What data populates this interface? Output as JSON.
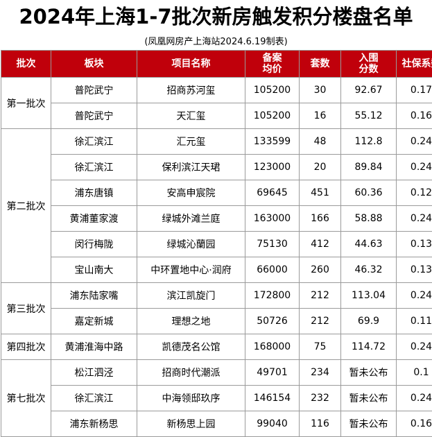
{
  "title": "2024年上海1-7批次新房触发积分楼盘名单",
  "subtitle": "(凤凰网房产上海站2024.6.19制表)",
  "colors": {
    "header_bg": "#c0000b",
    "header_text": "#ffffff",
    "border": "#9a9a9a"
  },
  "headers": {
    "batch": "批次",
    "area": "板块",
    "project": "项目名称",
    "price_line1": "备案",
    "price_line2": "均价",
    "units": "套数",
    "score_line1": "入围",
    "score_line2": "分数",
    "coef": "社保系数"
  },
  "batches": [
    {
      "name": "第一批次",
      "rows": [
        {
          "area": "普陀武宁",
          "project": "招商苏河玺",
          "price": "105200",
          "units": "30",
          "score": "92.67",
          "coef": "0.17"
        },
        {
          "area": "普陀武宁",
          "project": "天汇玺",
          "price": "105200",
          "units": "16",
          "score": "55.12",
          "coef": "0.16"
        }
      ]
    },
    {
      "name": "第二批次",
      "rows": [
        {
          "area": "徐汇滨江",
          "project": "汇元玺",
          "price": "133599",
          "units": "48",
          "score": "112.8",
          "coef": "0.24"
        },
        {
          "area": "徐汇滨江",
          "project": "保利滨江天珺",
          "price": "123000",
          "units": "20",
          "score": "89.84",
          "coef": "0.24"
        },
        {
          "area": "浦东唐镇",
          "project": "安高申宸院",
          "price": "69645",
          "units": "451",
          "score": "60.36",
          "coef": "0.12"
        },
        {
          "area": "黄浦董家渡",
          "project": "绿城外滩兰庭",
          "price": "163000",
          "units": "166",
          "score": "58.88",
          "coef": "0.24"
        },
        {
          "area": "闵行梅陇",
          "project": "绿城沁蘭园",
          "price": "75130",
          "units": "412",
          "score": "44.63",
          "coef": "0.13"
        },
        {
          "area": "宝山南大",
          "project": "中环置地中心·润府",
          "price": "66000",
          "units": "260",
          "score": "46.32",
          "coef": "0.13"
        }
      ]
    },
    {
      "name": "第三批次",
      "rows": [
        {
          "area": "浦东陆家嘴",
          "project": "滨江凯旋门",
          "price": "172800",
          "units": "212",
          "score": "113.04",
          "coef": "0.24"
        },
        {
          "area": "嘉定新城",
          "project": "理想之地",
          "price": "50726",
          "units": "212",
          "score": "69.9",
          "coef": "0.11"
        }
      ]
    },
    {
      "name": "第四批次",
      "rows": [
        {
          "area": "黄浦淮海中路",
          "project": "凯德茂名公馆",
          "price": "168000",
          "units": "75",
          "score": "114.72",
          "coef": "0.24"
        }
      ]
    },
    {
      "name": "第七批次",
      "rows": [
        {
          "area": "松江泗泾",
          "project": "招商时代潮派",
          "price": "49701",
          "units": "234",
          "score": "暂未公布",
          "coef": "0.1"
        },
        {
          "area": "徐汇滨江",
          "project": "中海领邸玖序",
          "price": "146154",
          "units": "232",
          "score": "暂未公布",
          "coef": "0.24"
        },
        {
          "area": "浦东新杨思",
          "project": "新杨思上园",
          "price": "99040",
          "units": "116",
          "score": "暂未公布",
          "coef": "0.16"
        }
      ]
    }
  ]
}
